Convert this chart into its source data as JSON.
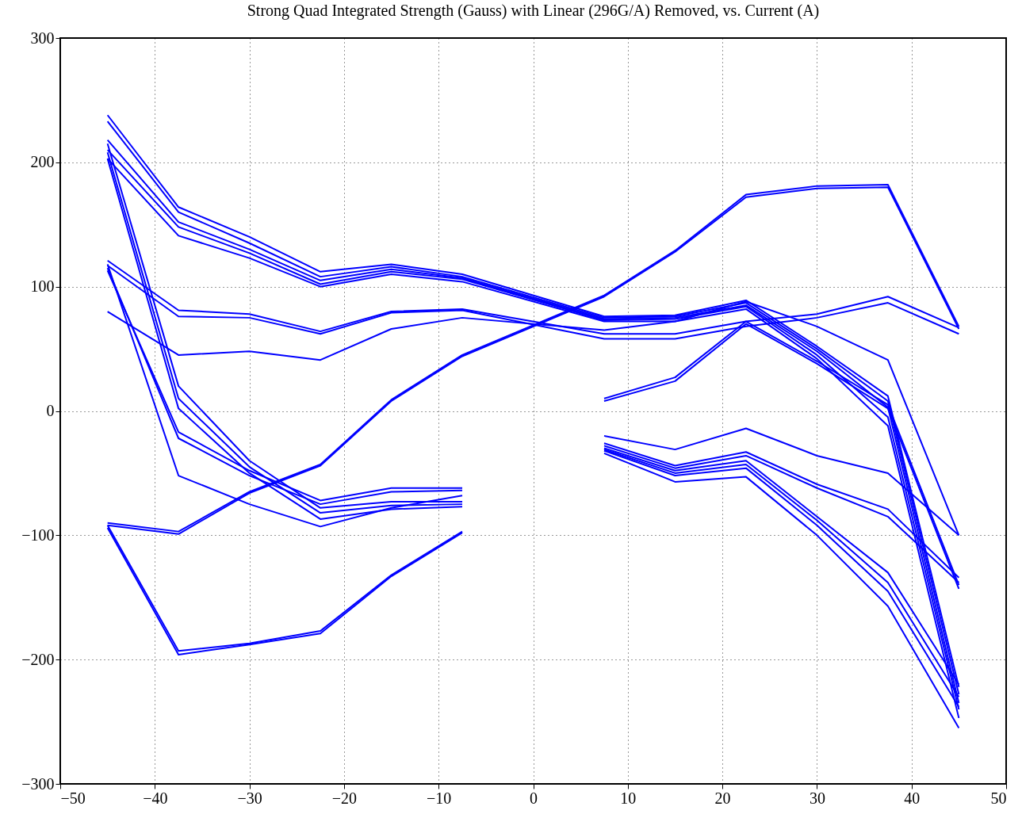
{
  "chart_data": {
    "type": "line",
    "title": "Strong Quad Integrated Strength (Gauss) with Linear (296G/A) Removed, vs. Current (A)",
    "xlim": [
      -50,
      50
    ],
    "xticks": [
      -50,
      -40,
      -30,
      -20,
      -10,
      0,
      10,
      20,
      30,
      40,
      50
    ],
    "ylim": [
      -300,
      300
    ],
    "yticks": [
      -300,
      -200,
      -100,
      0,
      100,
      200,
      300
    ],
    "grid": true,
    "line_style": "solid",
    "marker": "none",
    "series": [
      {
        "color": "#0000ff",
        "x": [
          -45,
          -37.5,
          -30,
          -22.5,
          -15,
          -7.5,
          7.5,
          15,
          22.5,
          30,
          37.5,
          45
        ],
        "values": [
          238,
          164,
          140,
          112,
          118,
          110,
          76,
          77,
          89,
          52,
          12,
          -222
        ]
      },
      {
        "color": "#0000ff",
        "x": [
          -45,
          -37.5,
          -30,
          -22.5,
          -15,
          -7.5,
          7.5,
          15,
          22.5,
          30,
          37.5,
          45
        ],
        "values": [
          233,
          160,
          135,
          108,
          116,
          108,
          75,
          76,
          87,
          50,
          8,
          -228
        ]
      },
      {
        "color": "#0000ff",
        "x": [
          -45,
          -37.5,
          -30,
          -22.5,
          -15,
          -7.5,
          7.5,
          15,
          22.5,
          30,
          37.5,
          45
        ],
        "values": [
          218,
          152,
          130,
          105,
          114,
          107,
          74,
          75,
          85,
          48,
          3,
          -235
        ]
      },
      {
        "color": "#0000ff",
        "x": [
          -45,
          -37.5,
          -30,
          -22.5,
          -15,
          -7.5,
          7.5,
          15,
          22.5,
          30,
          37.5,
          45
        ],
        "values": [
          210,
          148,
          127,
          102,
          112,
          106,
          73,
          74,
          84,
          45,
          -5,
          -240
        ]
      },
      {
        "color": "#0000ff",
        "x": [
          -45,
          -37.5,
          -30,
          -22.5,
          -15,
          -7.5,
          7.5,
          15,
          22.5,
          30,
          37.5,
          45
        ],
        "values": [
          203,
          141,
          123,
          100,
          110,
          104,
          72,
          72,
          82,
          42,
          -12,
          -247
        ]
      },
      {
        "color": "#0000ff",
        "x": [
          -45,
          -37.5,
          -30,
          -22.5,
          -15,
          -7.5
        ],
        "values": [
          215,
          20,
          -40,
          -78,
          -73,
          -73
        ]
      },
      {
        "color": "#0000ff",
        "x": [
          -45,
          -37.5,
          -30,
          -22.5,
          -15,
          -7.5
        ],
        "values": [
          208,
          10,
          -45,
          -82,
          -76,
          -75
        ]
      },
      {
        "color": "#0000ff",
        "x": [
          -45,
          -37.5,
          -30,
          -22.5,
          -15,
          -7.5
        ],
        "values": [
          203,
          2,
          -50,
          -87,
          -79,
          -77
        ]
      },
      {
        "color": "#0000ff",
        "x": [
          -45,
          -37.5,
          -30,
          -22.5,
          -15,
          -7.5
        ],
        "values": [
          113,
          -17,
          -48,
          -72,
          -62,
          -62
        ]
      },
      {
        "color": "#0000ff",
        "x": [
          -45,
          -37.5,
          -30,
          -22.5,
          -15,
          -7.5
        ],
        "values": [
          115,
          -22,
          -52,
          -75,
          -65,
          -64
        ]
      },
      {
        "color": "#0000ff",
        "x": [
          -45,
          -37.5,
          -30,
          -22.5,
          -15,
          -7.5
        ],
        "values": [
          118,
          -52,
          -75,
          -93,
          -78,
          -68
        ]
      },
      {
        "color": "#0000ff",
        "x": [
          -45,
          -37.5,
          -30,
          -22.5,
          -15,
          -7.5,
          7.5,
          15,
          22.5,
          30,
          37.5,
          45
        ],
        "values": [
          121,
          81,
          78,
          64,
          80,
          82,
          62,
          62,
          72,
          78,
          92,
          67
        ]
      },
      {
        "color": "#0000ff",
        "x": [
          -45,
          -37.5,
          -30,
          -22.5,
          -15,
          -7.5,
          7.5,
          15,
          22.5,
          30,
          37.5,
          45
        ],
        "values": [
          117,
          76,
          75,
          62,
          79,
          81,
          58,
          58,
          68,
          75,
          87,
          62
        ]
      },
      {
        "color": "#0000ff",
        "x": [
          -45,
          -37.5,
          -30,
          -22.5,
          -15,
          -7.5,
          7.5,
          15,
          22.5,
          30,
          37.5,
          45
        ],
        "values": [
          80,
          45,
          48,
          41,
          66,
          75,
          65,
          72,
          88,
          68,
          41,
          -100
        ]
      },
      {
        "color": "#0000ff",
        "x": [
          -45,
          -37.5,
          -30,
          -22.5,
          -15,
          -7.5,
          7.5,
          15,
          22.5,
          30,
          37.5,
          45
        ],
        "values": [
          -90,
          -97,
          -65,
          -43,
          9,
          45,
          93,
          129,
          174,
          181,
          182,
          68
        ]
      },
      {
        "color": "#0000ff",
        "x": [
          -45,
          -37.5,
          -30,
          -22.5,
          -15,
          -7.5,
          7.5,
          15,
          22.5,
          30,
          37.5,
          45
        ],
        "values": [
          -92,
          -99,
          -66,
          -44,
          8,
          44,
          92,
          128,
          172,
          179,
          180,
          66
        ]
      },
      {
        "color": "#0000ff",
        "x": [
          -45,
          -37.5,
          -30,
          -22.5,
          -15,
          -7.5
        ],
        "values": [
          -92,
          -193,
          -187,
          -177,
          -132,
          -97
        ]
      },
      {
        "color": "#0000ff",
        "x": [
          -45,
          -37.5,
          -30,
          -22.5,
          -15,
          -7.5
        ],
        "values": [
          -94,
          -196,
          -188,
          -179,
          -133,
          -98
        ]
      },
      {
        "color": "#0000ff",
        "x": [
          7.5,
          15,
          22.5,
          30,
          37.5,
          45
        ],
        "values": [
          10,
          27,
          72,
          40,
          5,
          -140
        ]
      },
      {
        "color": "#0000ff",
        "x": [
          7.5,
          15,
          22.5,
          30,
          37.5,
          45
        ],
        "values": [
          8,
          24,
          70,
          38,
          2,
          -143
        ]
      },
      {
        "color": "#0000ff",
        "x": [
          7.5,
          15,
          22.5,
          30,
          37.5,
          45
        ],
        "values": [
          -20,
          -31,
          -14,
          -36,
          -50,
          -100
        ]
      },
      {
        "color": "#0000ff",
        "x": [
          7.5,
          15,
          22.5,
          30,
          37.5,
          45
        ],
        "values": [
          -26,
          -44,
          -33,
          -59,
          -79,
          -134
        ]
      },
      {
        "color": "#0000ff",
        "x": [
          7.5,
          15,
          22.5,
          30,
          37.5,
          45
        ],
        "values": [
          -28,
          -46,
          -36,
          -62,
          -85,
          -138
        ]
      },
      {
        "color": "#0000ff",
        "x": [
          7.5,
          15,
          22.5,
          30,
          37.5,
          45
        ],
        "values": [
          -30,
          -48,
          -40,
          -85,
          -130,
          -220
        ]
      },
      {
        "color": "#0000ff",
        "x": [
          7.5,
          15,
          22.5,
          30,
          37.5,
          45
        ],
        "values": [
          -31,
          -50,
          -43,
          -88,
          -138,
          -230
        ]
      },
      {
        "color": "#0000ff",
        "x": [
          7.5,
          15,
          22.5,
          30,
          37.5,
          45
        ],
        "values": [
          -32,
          -52,
          -46,
          -92,
          -145,
          -238
        ]
      },
      {
        "color": "#0000ff",
        "x": [
          7.5,
          15,
          22.5,
          30,
          37.5,
          45
        ],
        "values": [
          -34,
          -57,
          -53,
          -100,
          -157,
          -255
        ]
      }
    ]
  }
}
